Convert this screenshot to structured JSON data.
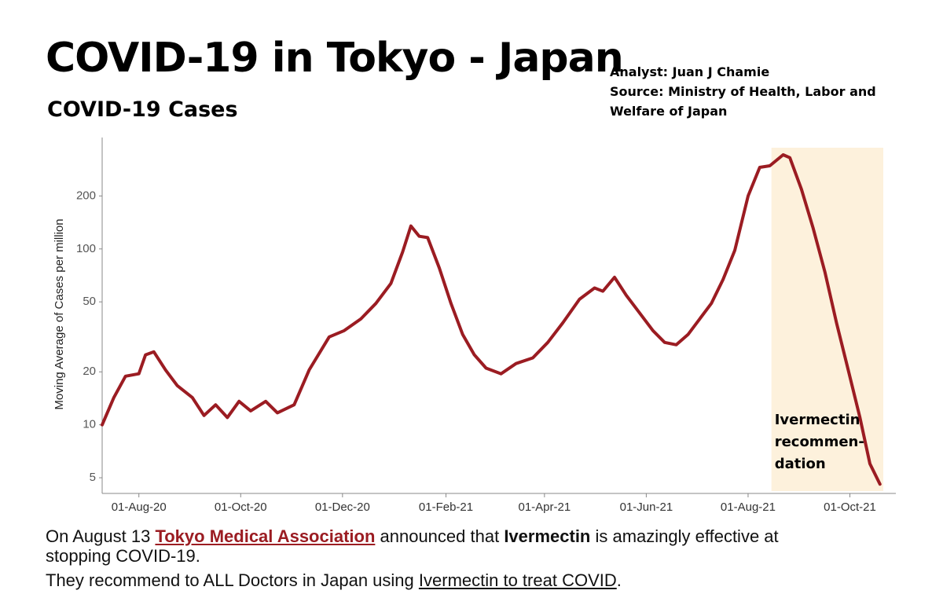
{
  "header": {
    "title": "COVID-19 in Tokyo - Japan",
    "subtitle": "COVID-19 Cases",
    "credits": [
      "Analyst: Juan J Chamie",
      "Source: Ministry of Health, Labor and",
      "Welfare of Japan"
    ]
  },
  "chart_data": {
    "type": "line",
    "ylabel": "Moving Average of Cases per million",
    "log_y": true,
    "color": "#9b1c22",
    "x": [
      "2020-07-10",
      "2020-07-17",
      "2020-07-24",
      "2020-08-01",
      "2020-08-05",
      "2020-08-10",
      "2020-08-17",
      "2020-08-24",
      "2020-09-02",
      "2020-09-09",
      "2020-09-16",
      "2020-09-23",
      "2020-09-30",
      "2020-10-07",
      "2020-10-16",
      "2020-10-23",
      "2020-11-02",
      "2020-11-11",
      "2020-11-23",
      "2020-12-02",
      "2020-12-12",
      "2020-12-21",
      "2020-12-30",
      "2021-01-06",
      "2021-01-11",
      "2021-01-16",
      "2021-01-21",
      "2021-01-28",
      "2021-02-04",
      "2021-02-11",
      "2021-02-18",
      "2021-02-25",
      "2021-03-06",
      "2021-03-15",
      "2021-03-25",
      "2021-04-03",
      "2021-04-12",
      "2021-04-22",
      "2021-05-01",
      "2021-05-06",
      "2021-05-13",
      "2021-05-20",
      "2021-05-29",
      "2021-06-05",
      "2021-06-12",
      "2021-06-19",
      "2021-06-26",
      "2021-07-03",
      "2021-07-10",
      "2021-07-17",
      "2021-07-24",
      "2021-08-01",
      "2021-08-08",
      "2021-08-14",
      "2021-08-22",
      "2021-08-26",
      "2021-09-02",
      "2021-09-09",
      "2021-09-16",
      "2021-09-23",
      "2021-09-30",
      "2021-10-07",
      "2021-10-13",
      "2021-10-19"
    ],
    "values": [
      10,
      14.3,
      18.9,
      19.5,
      25,
      26,
      20.5,
      16.7,
      14.3,
      11.3,
      13,
      11,
      13.6,
      12,
      13.6,
      11.7,
      13,
      20.5,
      31.6,
      34.3,
      40,
      49,
      63.6,
      96,
      135,
      118,
      116,
      78,
      49,
      32.6,
      25,
      21,
      19.5,
      22.3,
      24,
      29.4,
      38,
      51.7,
      60,
      57.5,
      69,
      54.5,
      42,
      34.3,
      29.4,
      28.5,
      32.6,
      40,
      49,
      67,
      98,
      200,
      291,
      297,
      343,
      330,
      218,
      131,
      74,
      38,
      20.5,
      11,
      6,
      4.6
    ],
    "xlim": [
      "2020-07-10",
      "2021-10-21"
    ],
    "xticks": [
      {
        "value": "2020-08-01",
        "label": "01-Aug-20"
      },
      {
        "value": "2020-10-01",
        "label": "01-Oct-20"
      },
      {
        "value": "2020-12-01",
        "label": "01-Dec-20"
      },
      {
        "value": "2021-02-01",
        "label": "01-Feb-21"
      },
      {
        "value": "2021-04-01",
        "label": "01-Apr-21"
      },
      {
        "value": "2021-06-01",
        "label": "01-Jun-21"
      },
      {
        "value": "2021-08-01",
        "label": "01-Aug-21"
      },
      {
        "value": "2021-10-01",
        "label": "01-Oct-21"
      }
    ],
    "ylim": [
      4.2,
      430
    ],
    "yticks": [
      5,
      10,
      20,
      50,
      100,
      200
    ],
    "highlight": {
      "from": "2021-08-15",
      "to": "2021-10-21",
      "color": "#fdf1dc",
      "label": [
        "Ivermectin",
        "recommen-",
        "dation"
      ]
    }
  },
  "footer": [
    [
      "On August 13 ",
      "Tokyo Medical Association",
      " announced that ",
      "Ivermectin",
      " is amazingly effective at"
    ],
    [
      "stopping COVID-19."
    ],
    [
      "They recommend to ALL Doctors in Japan using ",
      "Ivermectin to treat COVID",
      "."
    ]
  ]
}
